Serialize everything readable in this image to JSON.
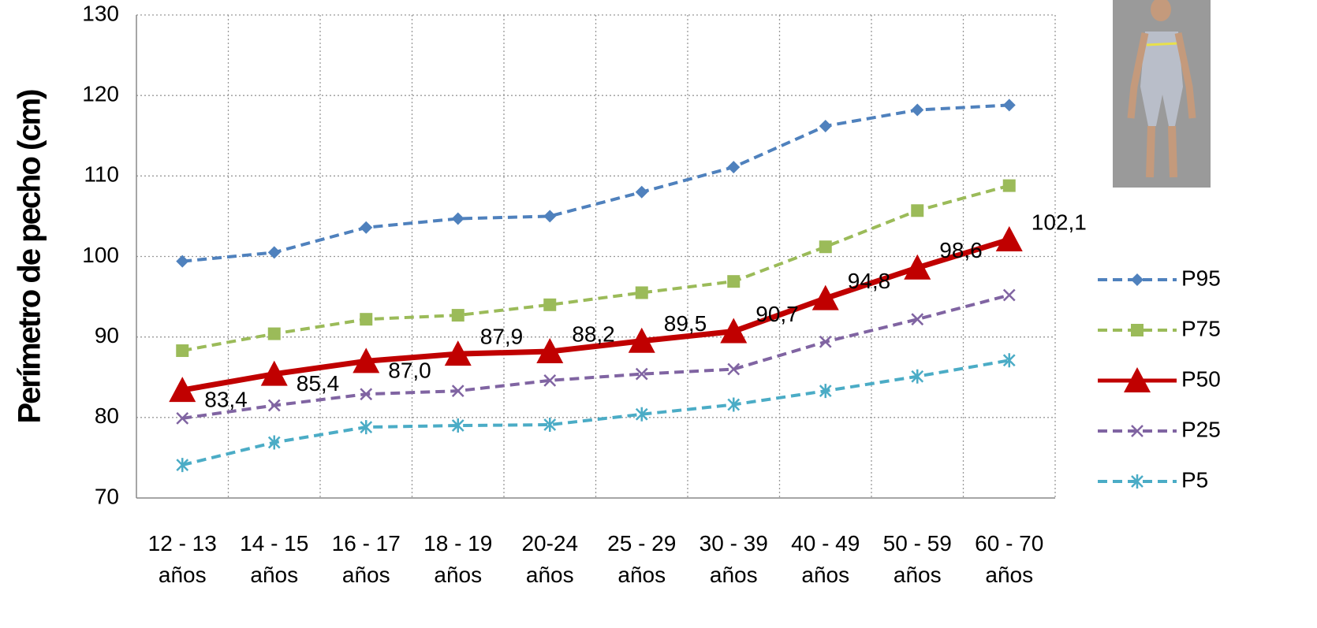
{
  "chart_data": {
    "type": "line",
    "y_label": "Perímetro de pecho (cm)",
    "categories": [
      "12 - 13 años",
      "14 - 15 años",
      "16 - 17 años",
      "18 - 19 años",
      "20-24 años",
      "25 - 29 años",
      "30 - 39 años",
      "40 - 49 años",
      "50 - 59 años",
      "60 - 70 años"
    ],
    "ylim": [
      70,
      130
    ],
    "yticks": [
      70,
      80,
      90,
      100,
      110,
      120,
      130
    ],
    "grid": true,
    "series": [
      {
        "name": "P95",
        "color": "#4f81bd",
        "marker": "diamond",
        "dashed": true,
        "values": [
          99.4,
          100.5,
          103.6,
          104.7,
          105.0,
          108.0,
          111.1,
          116.2,
          118.2,
          118.8
        ]
      },
      {
        "name": "P75",
        "color": "#9bbb59",
        "marker": "square",
        "dashed": true,
        "values": [
          88.3,
          90.4,
          92.2,
          92.7,
          94.0,
          95.5,
          96.9,
          101.2,
          105.7,
          108.8
        ]
      },
      {
        "name": "P50",
        "color": "#c00000",
        "marker": "triangle",
        "dashed": false,
        "values": [
          83.4,
          85.4,
          87.0,
          87.9,
          88.2,
          89.5,
          90.7,
          94.8,
          98.6,
          102.1
        ],
        "value_labels": [
          "83,4",
          "85,4",
          "87,0",
          "87,9",
          "88,2",
          "89,5",
          "90,7",
          "94,8",
          "98,6",
          "102,1"
        ]
      },
      {
        "name": "P25",
        "color": "#8064a2",
        "marker": "x",
        "dashed": true,
        "values": [
          79.9,
          81.5,
          82.9,
          83.3,
          84.6,
          85.4,
          86.0,
          89.4,
          92.2,
          95.2
        ]
      },
      {
        "name": "P5",
        "color": "#4bacc6",
        "marker": "star",
        "dashed": true,
        "values": [
          74.1,
          76.9,
          78.8,
          79.0,
          79.1,
          80.4,
          81.6,
          83.3,
          85.1,
          87.1
        ]
      }
    ]
  }
}
